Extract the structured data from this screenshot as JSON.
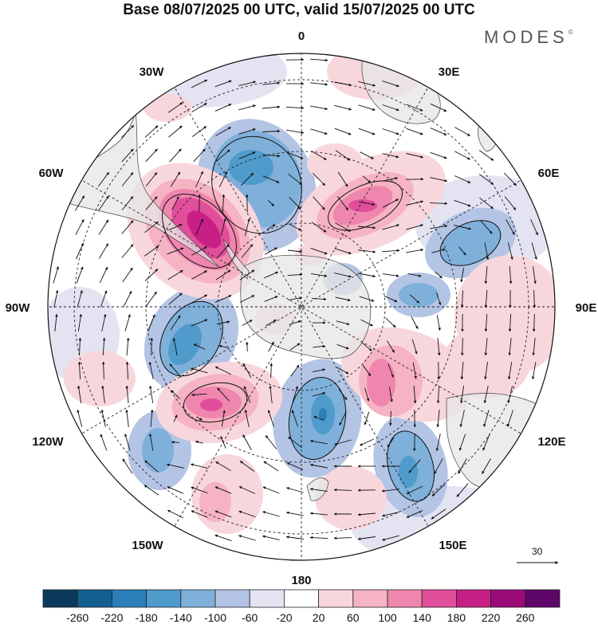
{
  "header": {
    "title": "Base 08/07/2025 00 UTC, valid 15/07/2025 00 UTC"
  },
  "brand": {
    "text": "MODES",
    "mark": "©"
  },
  "map": {
    "projection": "south-polar-stereographic",
    "longitude_labels": [
      {
        "text": "0"
      },
      {
        "text": "30E"
      },
      {
        "text": "60E"
      },
      {
        "text": "90E"
      },
      {
        "text": "120E"
      },
      {
        "text": "150E"
      },
      {
        "text": "180"
      },
      {
        "text": "150W"
      },
      {
        "text": "120W"
      },
      {
        "text": "90W"
      },
      {
        "text": "60W"
      },
      {
        "text": "30W"
      }
    ],
    "wind_reference": {
      "value": "30"
    }
  },
  "colorbar": {
    "ticks": [
      "-260",
      "-220",
      "-180",
      "-140",
      "-100",
      "-60",
      "-20",
      "20",
      "60",
      "100",
      "140",
      "180",
      "220",
      "260"
    ],
    "colors": [
      "#0b3a5c",
      "#135f8f",
      "#2b7fb8",
      "#4f9bcb",
      "#7fb0da",
      "#b3c4e4",
      "#e3e3f2",
      "#ffffff",
      "#f8d7dc",
      "#f5b3c3",
      "#ef86ad",
      "#e14e9a",
      "#c81f86",
      "#9b0a79",
      "#5e0568"
    ]
  },
  "colors": {
    "land": "#e6e6e6",
    "coast": "#555555"
  }
}
